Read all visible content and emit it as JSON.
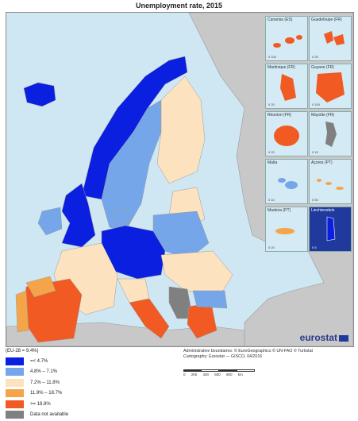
{
  "title": "Unemployment rate, 2015",
  "colors": {
    "sea": "#cfe7f3",
    "non_eu_land": "#c8c8c8",
    "class1": "#0a1fe0",
    "class2": "#76a6ea",
    "class3": "#fde2c0",
    "class4": "#f5a549",
    "class5": "#f15a22",
    "not_available": "#808080",
    "borders": "#9a9a9a"
  },
  "insets": [
    {
      "label": "Canarias (ES)",
      "scale": "0  100"
    },
    {
      "label": "Guadeloupe (FR)",
      "scale": "0  25"
    },
    {
      "label": "Martinique (FR)",
      "scale": "0  20"
    },
    {
      "label": "Guyane (FR)",
      "scale": "0  100"
    },
    {
      "label": "Réunion (FR)",
      "scale": "0  20"
    },
    {
      "label": "Mayotte (FR)",
      "scale": "0  15"
    },
    {
      "label": "Malta",
      "scale": "0  10"
    },
    {
      "label": "Açores (PT)",
      "scale": "0  50"
    },
    {
      "label": "Madeira (PT)",
      "scale": "0  20"
    },
    {
      "label": "Liechtenstein",
      "scale": "0  5"
    }
  ],
  "logo": "eurostat",
  "legend": {
    "reference": "(EU-28  =  9.4%)",
    "items": [
      {
        "label": "=< 4.7%",
        "color": "#0a1fe0"
      },
      {
        "label": "4.8% – 7.1%",
        "color": "#76a6ea"
      },
      {
        "label": "7.2% – 11.8%",
        "color": "#fde2c0"
      },
      {
        "label": "11.9% – 18.7%",
        "color": "#f5a549"
      },
      {
        "label": ">= 18.8%",
        "color": "#f15a22"
      },
      {
        "label": "Data not available",
        "color": "#808080"
      }
    ]
  },
  "credits": {
    "boundaries": "Administrative boundaries: © EuroGeographics © UN-FAO © Turkstat",
    "cartography": "Cartography: Eurostat — GISCO, 04/2016"
  },
  "scale_bar": {
    "ticks": "0   200   400   600   800 km"
  }
}
